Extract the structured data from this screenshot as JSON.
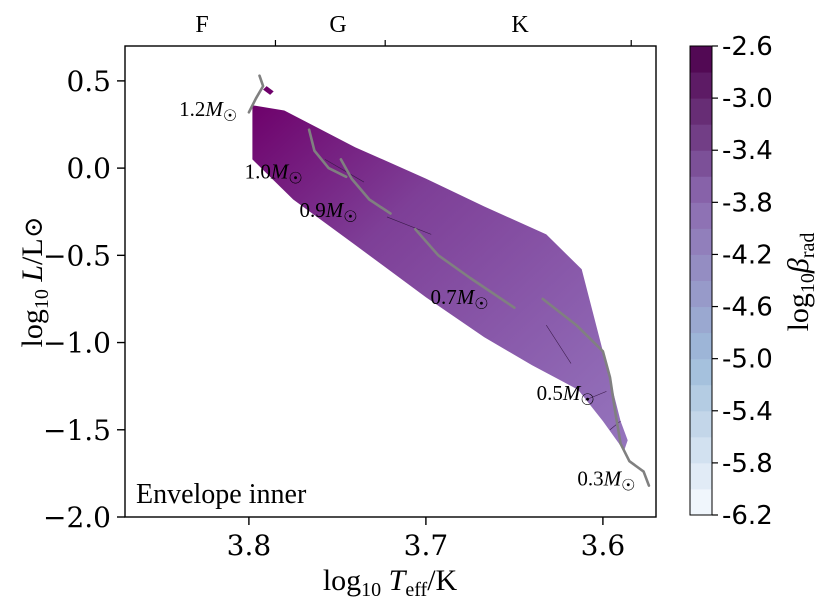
{
  "chart_data": {
    "type": "scatter",
    "title": "",
    "panel_label": "Envelope inner",
    "xlabel": "log10 Teff/K",
    "ylabel": "log10 L/L⊙",
    "xlim": [
      3.87,
      3.57
    ],
    "ylim": [
      -2.0,
      0.7
    ],
    "xticks": [
      3.8,
      3.7,
      3.6
    ],
    "xtick_labels": [
      "3.8",
      "3.7",
      "3.6"
    ],
    "yticks": [
      0.5,
      0.0,
      -0.5,
      -1.0,
      -1.5,
      -2.0
    ],
    "ytick_labels": [
      "0.5",
      "0.0",
      "−0.5",
      "−1.0",
      "−1.5",
      "−2.0"
    ],
    "spectral_types": [
      {
        "label": "F",
        "center": 3.828
      },
      {
        "label": "G",
        "center": 3.753
      },
      {
        "label": "K",
        "center": 3.666
      }
    ],
    "spectral_boundaries": [
      3.785,
      3.723,
      3.584
    ],
    "colorbar": {
      "label": "log10 β_rad",
      "min": -6.2,
      "max": -2.6,
      "ticks": [
        "-2.6",
        "-3.0",
        "-3.4",
        "-3.8",
        "-4.2",
        "-4.6",
        "-5.0",
        "-5.4",
        "-5.8",
        "-6.2"
      ],
      "tick_values": [
        -2.6,
        -3.0,
        -3.4,
        -3.8,
        -4.2,
        -4.6,
        -5.0,
        -5.4,
        -5.8,
        -6.2
      ],
      "levels": 18,
      "color_low": "#f7fbff",
      "color_mid_low": "#9ebcda",
      "color_mid_high": "#8c6bb1",
      "color_high": "#4d004b"
    },
    "region_band": {
      "upper_edge": [
        [
          3.798,
          0.36
        ],
        [
          3.78,
          0.33
        ],
        [
          3.74,
          0.12
        ],
        [
          3.7,
          -0.06
        ],
        [
          3.667,
          -0.22
        ],
        [
          3.632,
          -0.38
        ],
        [
          3.612,
          -0.58
        ],
        [
          3.6,
          -1.05
        ],
        [
          3.59,
          -1.45
        ],
        [
          3.586,
          -1.56
        ]
      ],
      "lower_edge": [
        [
          3.588,
          -1.62
        ],
        [
          3.6,
          -1.45
        ],
        [
          3.614,
          -1.27
        ],
        [
          3.64,
          -1.13
        ],
        [
          3.667,
          -0.97
        ],
        [
          3.7,
          -0.74
        ],
        [
          3.74,
          -0.44
        ],
        [
          3.775,
          -0.18
        ],
        [
          3.798,
          0.05
        ]
      ],
      "colors": [
        "#6e016b",
        "#7e3f97",
        "#8a5cac",
        "#9575bd"
      ]
    },
    "tracks": [
      {
        "mass_label": "1.2M☉",
        "label_at": [
          3.823,
          0.3
        ],
        "points": [
          [
            3.794,
            0.53
          ],
          [
            3.792,
            0.47
          ],
          [
            3.796,
            0.4
          ],
          [
            3.8,
            0.32
          ]
        ]
      },
      {
        "mass_label": "1.0M☉",
        "label_at": [
          3.786,
          -0.06
        ],
        "points": [
          [
            3.766,
            0.22
          ],
          [
            3.763,
            0.1
          ],
          [
            3.755,
            0.0
          ],
          [
            3.745,
            -0.05
          ]
        ]
      },
      {
        "mass_label": "0.9M☉",
        "label_at": [
          3.755,
          -0.28
        ],
        "points": [
          [
            3.748,
            0.05
          ],
          [
            3.742,
            -0.06
          ],
          [
            3.732,
            -0.18
          ],
          [
            3.72,
            -0.26
          ]
        ]
      },
      {
        "mass_label": "0.7M☉",
        "label_at": [
          3.681,
          -0.78
        ],
        "points": [
          [
            3.706,
            -0.35
          ],
          [
            3.693,
            -0.5
          ],
          [
            3.675,
            -0.63
          ],
          [
            3.65,
            -0.8
          ]
        ]
      },
      {
        "mass_label": "0.5M☉",
        "label_at": [
          3.621,
          -1.33
        ],
        "points": [
          [
            3.634,
            -0.75
          ],
          [
            3.615,
            -0.9
          ],
          [
            3.6,
            -1.05
          ],
          [
            3.596,
            -1.2
          ],
          [
            3.593,
            -1.4
          ],
          [
            3.59,
            -1.58
          ],
          [
            3.585,
            -1.68
          ],
          [
            3.577,
            -1.74
          ],
          [
            3.574,
            -1.82
          ]
        ]
      },
      {
        "mass_label": "0.3M☉",
        "label_at": [
          3.598,
          -1.82
        ],
        "points": []
      }
    ]
  }
}
